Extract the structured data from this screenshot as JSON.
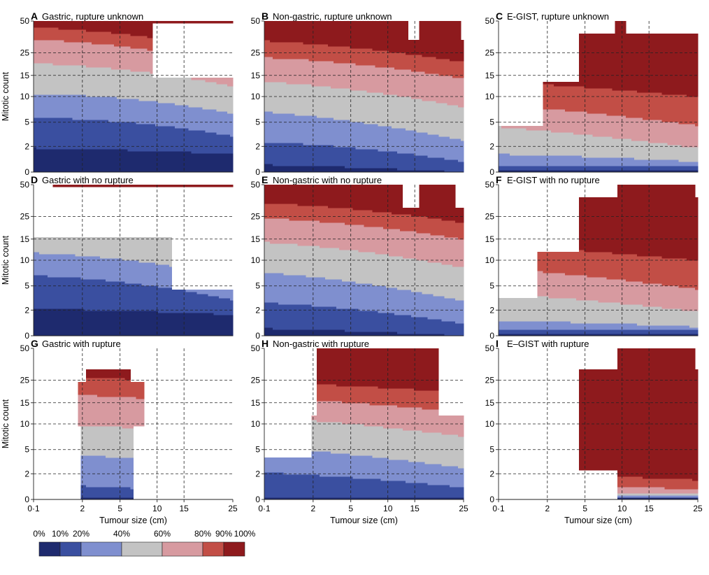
{
  "chart_data": {
    "type": "heatmap",
    "x_axis": {
      "label": "Tumour size (cm)",
      "ticks": [
        {
          "value": 0.1,
          "label": "0·1"
        },
        {
          "value": 2,
          "label": "2"
        },
        {
          "value": 5,
          "label": "5"
        },
        {
          "value": 10,
          "label": "10"
        },
        {
          "value": 15,
          "label": "15"
        },
        {
          "value": 25,
          "label": "25"
        }
      ],
      "range": [
        0.1,
        25
      ]
    },
    "y_axis": {
      "label": "Mitotic count",
      "ticks": [
        {
          "value": 0,
          "label": "0"
        },
        {
          "value": 2,
          "label": "2"
        },
        {
          "value": 5,
          "label": "5"
        },
        {
          "value": 10,
          "label": "10"
        },
        {
          "value": 15,
          "label": "15"
        },
        {
          "value": 25,
          "label": "25"
        },
        {
          "value": 50,
          "label": "50"
        }
      ],
      "range": [
        0,
        50
      ]
    },
    "grid": true,
    "color_scale": {
      "breaks": [
        "0%",
        "10%",
        "20%",
        "40%",
        "60%",
        "80%",
        "90%",
        "100%"
      ],
      "colors": [
        "#1e2a6e",
        "#3a4fa0",
        "#7f8fcf",
        "#c3c3c3",
        "#d79aa0",
        "#c24e46",
        "#8e1a1d"
      ]
    },
    "panels": [
      {
        "letter": "A",
        "title": "Gastric, rupture unknown",
        "row": 0,
        "col": 0,
        "mask": [
          [
            0.12,
            1,
            0.98,
            1
          ],
          [
            0.12,
            0.2,
            0.3,
            0.3
          ],
          [
            0,
            0.6,
            0,
            1
          ],
          [
            0,
            1,
            0,
            0.62
          ]
        ],
        "bounds": [
          [
            0.16,
            0.14,
            -0.1
          ],
          [
            0.36,
            0.35,
            -0.55
          ],
          [
            0.52,
            0.5,
            -0.55
          ],
          [
            0.72,
            0.68,
            -0.55
          ],
          [
            0.88,
            0.82,
            -0.5
          ],
          [
            0.96,
            0.9,
            -0.45
          ]
        ]
      },
      {
        "letter": "B",
        "title": "Non-gastric, rupture unknown",
        "row": 0,
        "col": 1,
        "mask": [
          [
            0,
            1,
            0,
            0.88
          ],
          [
            0.78,
            0.98,
            0.88,
            1
          ],
          [
            0,
            0.72,
            0.88,
            1
          ]
        ],
        "bounds": [
          [
            0.05,
            0.02,
            -0.1
          ],
          [
            0.2,
            0.15,
            -0.4
          ],
          [
            0.4,
            0.3,
            -0.45
          ],
          [
            0.6,
            0.52,
            -0.45
          ],
          [
            0.76,
            0.7,
            -0.4
          ],
          [
            0.87,
            0.8,
            -0.35
          ]
        ]
      },
      {
        "letter": "C",
        "title": "E-GIST, rupture unknown",
        "row": 0,
        "col": 2,
        "mask": [
          [
            0,
            1,
            0,
            0.3
          ],
          [
            0.22,
            1,
            0.3,
            0.6
          ],
          [
            0.4,
            1,
            0.6,
            0.92
          ],
          [
            0.58,
            0.64,
            0.92,
            1
          ]
        ],
        "bounds": [
          [
            0.02,
            0.02,
            0
          ],
          [
            0.04,
            0.04,
            0
          ],
          [
            0.12,
            0.09,
            -0.1
          ],
          [
            0.3,
            0.2,
            -0.2
          ],
          [
            0.45,
            0.34,
            -0.15
          ],
          [
            0.6,
            0.52,
            -0.1
          ]
        ]
      },
      {
        "letter": "D",
        "title": "Gastric with no rupture",
        "row": 1,
        "col": 0,
        "mask": [
          [
            0.1,
            1,
            0.98,
            1
          ],
          [
            0.12,
            0.22,
            0.35,
            0.65
          ],
          [
            0,
            0.7,
            0,
            0.65
          ],
          [
            0,
            1,
            0,
            0.3
          ]
        ],
        "bounds": [
          [
            0.18,
            0.16,
            -0.1
          ],
          [
            0.4,
            0.35,
            -0.55
          ],
          [
            0.55,
            0.5,
            -0.55
          ],
          [
            0.74,
            0.68,
            -0.55
          ],
          [
            0.88,
            0.82,
            -0.5
          ],
          [
            0.96,
            0.9,
            -0.45
          ]
        ]
      },
      {
        "letter": "E",
        "title": "Non-gastric with no rupture",
        "row": 1,
        "col": 1,
        "mask": [
          [
            0,
            1,
            0,
            0.85
          ],
          [
            0.78,
            0.96,
            0.85,
            1
          ],
          [
            0,
            0.7,
            0.85,
            1
          ]
        ],
        "bounds": [
          [
            0.05,
            0.02,
            -0.1
          ],
          [
            0.22,
            0.16,
            -0.4
          ],
          [
            0.42,
            0.32,
            -0.45
          ],
          [
            0.62,
            0.54,
            -0.45
          ],
          [
            0.78,
            0.72,
            -0.4
          ],
          [
            0.88,
            0.82,
            -0.35
          ]
        ]
      },
      {
        "letter": "F",
        "title": "E-GIST with no rupture",
        "row": 1,
        "col": 2,
        "mask": [
          [
            0,
            1,
            0,
            0.25
          ],
          [
            0.2,
            1,
            0.25,
            0.55
          ],
          [
            0.4,
            1,
            0.55,
            0.92
          ],
          [
            0.6,
            0.98,
            0.92,
            1
          ]
        ],
        "bounds": [
          [
            0.02,
            0.02,
            0
          ],
          [
            0.04,
            0.04,
            0
          ],
          [
            0.1,
            0.08,
            -0.1
          ],
          [
            0.28,
            0.2,
            -0.2
          ],
          [
            0.45,
            0.34,
            -0.15
          ],
          [
            0.6,
            0.52,
            -0.1
          ]
        ]
      },
      {
        "letter": "G",
        "title": "Gastric with rupture",
        "row": 2,
        "col": 0,
        "mask": [
          [
            0.22,
            0.56,
            0.48,
            0.78
          ],
          [
            0.26,
            0.48,
            0.78,
            0.86
          ],
          [
            0.24,
            0.5,
            0,
            0.48
          ]
        ],
        "bounds": [
          [
            0.02,
            0.02,
            0
          ],
          [
            0.1,
            0.08,
            -0.3
          ],
          [
            0.3,
            0.28,
            -0.3
          ],
          [
            0.5,
            0.48,
            -0.3
          ],
          [
            0.7,
            0.68,
            -0.3
          ],
          [
            0.82,
            0.8,
            -0.3
          ]
        ]
      },
      {
        "letter": "H",
        "title": "Non-gastric with rupture",
        "row": 2,
        "col": 1,
        "mask": [
          [
            0,
            1,
            0,
            0.28
          ],
          [
            0.24,
            1,
            0.28,
            0.55
          ],
          [
            0.26,
            0.88,
            0.55,
            1
          ]
        ],
        "bounds": [
          [
            0.02,
            0.02,
            0
          ],
          [
            0.18,
            0.12,
            -0.2
          ],
          [
            0.35,
            0.25,
            -0.2
          ],
          [
            0.55,
            0.45,
            -0.15
          ],
          [
            0.68,
            0.6,
            -0.1
          ],
          [
            0.78,
            0.72,
            -0.05
          ]
        ]
      },
      {
        "letter": "I",
        "title": "E–GIST with rupture",
        "row": 2,
        "col": 2,
        "mask": [
          [
            0.4,
            1,
            0.2,
            0.86
          ],
          [
            0.6,
            0.98,
            0.86,
            1
          ],
          [
            0.6,
            1,
            0,
            0.2
          ]
        ],
        "bounds": [
          [
            0.01,
            0.01,
            0
          ],
          [
            0.02,
            0.02,
            0
          ],
          [
            0.03,
            0.03,
            0
          ],
          [
            0.04,
            0.04,
            0
          ],
          [
            0.1,
            0.08,
            -0.05
          ],
          [
            0.18,
            0.14,
            -0.05
          ]
        ]
      }
    ]
  }
}
